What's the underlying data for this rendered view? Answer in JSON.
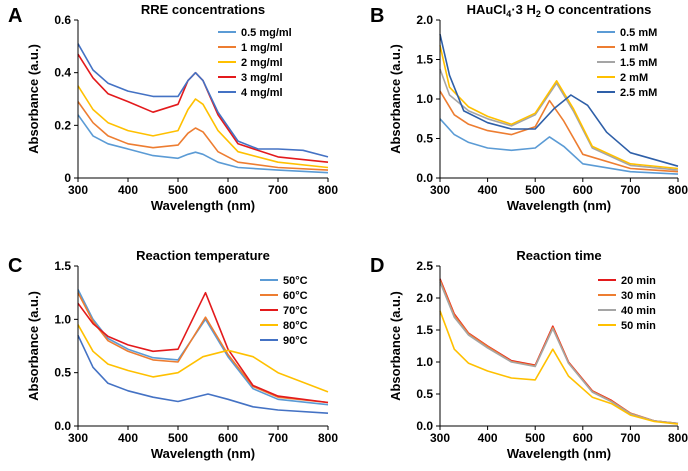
{
  "chart_data": [
    {
      "panel_label": "A",
      "type": "line",
      "title": "RRE concentrations",
      "xlabel": "Wavelength (nm)",
      "ylabel": "Absorbance (a.u.)",
      "xlim": [
        300,
        800
      ],
      "ylim": [
        0,
        0.6
      ],
      "xticks": [
        "300",
        "400",
        "500",
        "600",
        "700",
        "800"
      ],
      "yticks": [
        "0",
        "0.2",
        "0.4",
        "0.6"
      ],
      "legend_position": "top-right",
      "series": [
        {
          "name": "0.5 mg/ml",
          "color": "#5B9BD5",
          "x": [
            300,
            330,
            360,
            400,
            450,
            500,
            520,
            535,
            550,
            580,
            620,
            700,
            800
          ],
          "y": [
            0.24,
            0.16,
            0.13,
            0.11,
            0.085,
            0.075,
            0.09,
            0.098,
            0.09,
            0.06,
            0.04,
            0.03,
            0.02
          ]
        },
        {
          "name": "1 mg/ml",
          "color": "#ED7D31",
          "x": [
            300,
            330,
            360,
            400,
            450,
            500,
            520,
            535,
            550,
            580,
            620,
            700,
            800
          ],
          "y": [
            0.29,
            0.21,
            0.16,
            0.13,
            0.115,
            0.125,
            0.17,
            0.19,
            0.175,
            0.1,
            0.06,
            0.04,
            0.03
          ]
        },
        {
          "name": "2 mg/ml",
          "color": "#FFC000",
          "x": [
            300,
            330,
            360,
            400,
            450,
            500,
            520,
            535,
            550,
            580,
            620,
            700,
            800
          ],
          "y": [
            0.35,
            0.26,
            0.21,
            0.18,
            0.16,
            0.18,
            0.26,
            0.3,
            0.28,
            0.18,
            0.1,
            0.06,
            0.04
          ]
        },
        {
          "name": "3 mg/ml",
          "color": "#E31A1C",
          "x": [
            300,
            330,
            360,
            400,
            450,
            500,
            520,
            535,
            550,
            580,
            620,
            700,
            750,
            800
          ],
          "y": [
            0.47,
            0.38,
            0.32,
            0.29,
            0.25,
            0.28,
            0.37,
            0.4,
            0.37,
            0.24,
            0.13,
            0.08,
            0.07,
            0.06
          ]
        },
        {
          "name": "4 mg/ml",
          "color": "#4472C4",
          "x": [
            300,
            330,
            360,
            400,
            450,
            500,
            520,
            535,
            550,
            580,
            620,
            660,
            700,
            750,
            800
          ],
          "y": [
            0.51,
            0.41,
            0.36,
            0.33,
            0.31,
            0.31,
            0.37,
            0.4,
            0.37,
            0.25,
            0.14,
            0.11,
            0.11,
            0.105,
            0.08
          ]
        }
      ]
    },
    {
      "panel_label": "B",
      "type": "line",
      "title": "HAuCl",
      "title_sub": "4",
      "title_rest": "·3 H",
      "title_sub2": "2",
      "title_end": "O concentrations",
      "xlabel": "Wavelength (nm)",
      "ylabel": "Absorbance (a.u.)",
      "xlim": [
        300,
        800
      ],
      "ylim": [
        0,
        2.0
      ],
      "xticks": [
        "300",
        "400",
        "500",
        "600",
        "700",
        "800"
      ],
      "yticks": [
        "0.0",
        "0.5",
        "1.0",
        "1.5",
        "2.0"
      ],
      "legend_position": "top-right",
      "series": [
        {
          "name": "0.5 mM",
          "color": "#5B9BD5",
          "x": [
            300,
            330,
            360,
            400,
            450,
            500,
            530,
            560,
            600,
            700,
            800
          ],
          "y": [
            0.75,
            0.55,
            0.45,
            0.38,
            0.35,
            0.38,
            0.52,
            0.4,
            0.18,
            0.08,
            0.05
          ]
        },
        {
          "name": "1 mM",
          "color": "#ED7D31",
          "x": [
            300,
            330,
            360,
            400,
            450,
            500,
            530,
            560,
            600,
            700,
            800
          ],
          "y": [
            1.1,
            0.8,
            0.68,
            0.6,
            0.55,
            0.65,
            0.98,
            0.72,
            0.3,
            0.12,
            0.08
          ]
        },
        {
          "name": "1.5 mM",
          "color": "#A5A5A5",
          "x": [
            300,
            320,
            360,
            400,
            450,
            500,
            545,
            580,
            620,
            700,
            800
          ],
          "y": [
            1.38,
            1.05,
            0.85,
            0.75,
            0.66,
            0.8,
            1.2,
            0.85,
            0.38,
            0.16,
            0.1
          ]
        },
        {
          "name": "2 mM",
          "color": "#FFC000",
          "x": [
            300,
            320,
            360,
            400,
            450,
            500,
            545,
            580,
            620,
            700,
            800
          ],
          "y": [
            1.68,
            1.15,
            0.9,
            0.78,
            0.68,
            0.82,
            1.23,
            0.88,
            0.4,
            0.18,
            0.12
          ]
        },
        {
          "name": "2.5 mM",
          "color": "#2E5FA8",
          "x": [
            300,
            320,
            350,
            400,
            450,
            500,
            540,
            575,
            610,
            650,
            700,
            800
          ],
          "y": [
            1.82,
            1.3,
            0.85,
            0.7,
            0.62,
            0.62,
            0.88,
            1.05,
            0.92,
            0.58,
            0.32,
            0.15
          ]
        }
      ]
    },
    {
      "panel_label": "C",
      "type": "line",
      "title": "Reaction temperature",
      "xlabel": "Wavelength (nm)",
      "ylabel": "Absorbance (a.u.)",
      "xlim": [
        300,
        800
      ],
      "ylim": [
        0,
        1.5
      ],
      "xticks": [
        "300",
        "400",
        "500",
        "600",
        "700",
        "800"
      ],
      "yticks": [
        "0.0",
        "0.5",
        "1.0",
        "1.5"
      ],
      "legend_position": "top-right",
      "series": [
        {
          "name": "50°C",
          "color": "#5B9BD5",
          "x": [
            300,
            330,
            360,
            400,
            450,
            500,
            555,
            600,
            650,
            700,
            800
          ],
          "y": [
            1.28,
            1.0,
            0.82,
            0.72,
            0.64,
            0.62,
            1.0,
            0.65,
            0.35,
            0.25,
            0.2
          ]
        },
        {
          "name": "60°C",
          "color": "#ED7D31",
          "x": [
            300,
            330,
            360,
            400,
            450,
            500,
            555,
            600,
            650,
            700,
            800
          ],
          "y": [
            1.25,
            0.98,
            0.8,
            0.7,
            0.62,
            0.6,
            1.02,
            0.67,
            0.37,
            0.27,
            0.22
          ]
        },
        {
          "name": "70°C",
          "color": "#E31A1C",
          "x": [
            300,
            330,
            360,
            400,
            450,
            500,
            555,
            600,
            650,
            700,
            800
          ],
          "y": [
            1.15,
            0.96,
            0.84,
            0.76,
            0.7,
            0.72,
            1.25,
            0.72,
            0.38,
            0.28,
            0.22
          ]
        },
        {
          "name": "80°C",
          "color": "#FFC000",
          "x": [
            300,
            330,
            360,
            400,
            450,
            500,
            550,
            600,
            650,
            700,
            800
          ],
          "y": [
            0.95,
            0.7,
            0.58,
            0.52,
            0.46,
            0.5,
            0.65,
            0.71,
            0.65,
            0.5,
            0.32
          ]
        },
        {
          "name": "90°C",
          "color": "#4472C4",
          "x": [
            300,
            330,
            360,
            400,
            450,
            500,
            560,
            600,
            650,
            700,
            800
          ],
          "y": [
            0.85,
            0.55,
            0.4,
            0.33,
            0.27,
            0.23,
            0.3,
            0.25,
            0.18,
            0.15,
            0.12
          ]
        }
      ]
    },
    {
      "panel_label": "D",
      "type": "line",
      "title": "Reaction time",
      "xlabel": "Wavelength (nm)",
      "ylabel": "Absorbance (a.u.)",
      "xlim": [
        300,
        800
      ],
      "ylim": [
        0,
        2.5
      ],
      "xticks": [
        "300",
        "400",
        "500",
        "600",
        "700",
        "800"
      ],
      "yticks": [
        "0.0",
        "0.5",
        "1.0",
        "1.5",
        "2.0",
        "2.5"
      ],
      "legend_position": "top-right",
      "series": [
        {
          "name": "20 min",
          "color": "#E31A1C",
          "x": [
            300,
            330,
            360,
            400,
            450,
            500,
            537,
            570,
            620,
            660,
            700,
            750,
            800
          ],
          "y": [
            2.3,
            1.75,
            1.45,
            1.25,
            1.02,
            0.95,
            1.56,
            1.0,
            0.55,
            0.4,
            0.2,
            0.08,
            0.04
          ]
        },
        {
          "name": "30 min",
          "color": "#ED7D31",
          "x": [
            300,
            330,
            360,
            400,
            450,
            500,
            537,
            570,
            620,
            660,
            700,
            750,
            800
          ],
          "y": [
            2.28,
            1.73,
            1.44,
            1.24,
            1.01,
            0.94,
            1.54,
            0.99,
            0.54,
            0.39,
            0.2,
            0.08,
            0.04
          ]
        },
        {
          "name": "40 min",
          "color": "#A5A5A5",
          "x": [
            300,
            330,
            360,
            400,
            450,
            500,
            537,
            570,
            620,
            660,
            700,
            750,
            800
          ],
          "y": [
            2.25,
            1.7,
            1.42,
            1.22,
            1.0,
            0.93,
            1.52,
            0.98,
            0.53,
            0.38,
            0.19,
            0.08,
            0.04
          ]
        },
        {
          "name": "50 min",
          "color": "#FFC000",
          "x": [
            300,
            330,
            360,
            400,
            450,
            500,
            537,
            570,
            620,
            660,
            700,
            750,
            800
          ],
          "y": [
            1.8,
            1.2,
            0.98,
            0.86,
            0.75,
            0.72,
            1.2,
            0.78,
            0.45,
            0.35,
            0.17,
            0.07,
            0.03
          ]
        }
      ]
    }
  ]
}
